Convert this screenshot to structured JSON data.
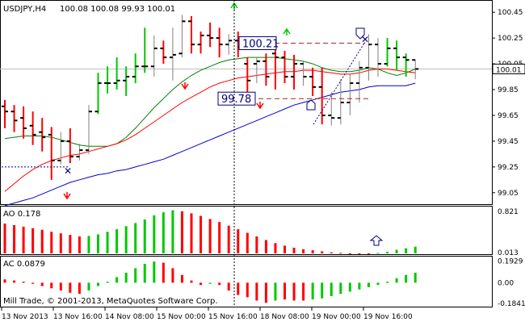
{
  "header": {
    "symbol": "USDJPY,H4",
    "ohlc": "100.08 100.08 99.93 100.01"
  },
  "chart_data": [
    {
      "type": "candlestick",
      "title": "USDJPY,H4",
      "y_ticks": [
        "100.45",
        "100.25",
        "100.05",
        "99.85",
        "99.65",
        "99.45",
        "99.25",
        "99.05"
      ],
      "y_tick_values": [
        100.45,
        100.25,
        100.05,
        99.85,
        99.65,
        99.45,
        99.25,
        99.05
      ],
      "ylim": [
        98.98,
        100.52
      ],
      "current_price": "100.01",
      "current_price_value": 100.01,
      "bars": [
        {
          "o": 99.72,
          "h": 99.77,
          "l": 99.55,
          "c": 99.68,
          "col": "red"
        },
        {
          "o": 99.68,
          "h": 99.73,
          "l": 99.52,
          "c": 99.61,
          "col": "red"
        },
        {
          "o": 99.63,
          "h": 99.72,
          "l": 99.47,
          "c": 99.55,
          "col": "red"
        },
        {
          "o": 99.57,
          "h": 99.68,
          "l": 99.42,
          "c": 99.5,
          "col": "red"
        },
        {
          "o": 99.52,
          "h": 99.63,
          "l": 99.37,
          "c": 99.48,
          "col": "red"
        },
        {
          "o": 99.5,
          "h": 99.56,
          "l": 99.15,
          "c": 99.3,
          "col": "red"
        },
        {
          "o": 99.3,
          "h": 99.52,
          "l": 99.27,
          "c": 99.45,
          "col": "gray"
        },
        {
          "o": 99.45,
          "h": 99.55,
          "l": 99.28,
          "c": 99.33,
          "col": "red"
        },
        {
          "o": 99.33,
          "h": 99.43,
          "l": 99.3,
          "c": 99.38,
          "col": "gray"
        },
        {
          "o": 99.38,
          "h": 99.73,
          "l": 99.35,
          "c": 99.68,
          "col": "gray"
        },
        {
          "o": 99.68,
          "h": 99.98,
          "l": 99.66,
          "c": 99.9,
          "col": "green"
        },
        {
          "o": 99.9,
          "h": 100.03,
          "l": 99.82,
          "c": 99.9,
          "col": "green"
        },
        {
          "o": 99.9,
          "h": 100.1,
          "l": 99.85,
          "c": 99.92,
          "col": "green"
        },
        {
          "o": 99.92,
          "h": 100.03,
          "l": 99.8,
          "c": 99.95,
          "col": "green"
        },
        {
          "o": 99.95,
          "h": 100.13,
          "l": 99.9,
          "c": 100.03,
          "col": "green"
        },
        {
          "o": 100.03,
          "h": 100.33,
          "l": 99.98,
          "c": 100.03,
          "col": "green"
        },
        {
          "o": 100.03,
          "h": 100.27,
          "l": 99.95,
          "c": 100.17,
          "col": "gray"
        },
        {
          "o": 100.17,
          "h": 100.23,
          "l": 100.05,
          "c": 100.1,
          "col": "red"
        },
        {
          "o": 100.1,
          "h": 100.33,
          "l": 99.92,
          "c": 100.12,
          "col": "gray"
        },
        {
          "o": 100.13,
          "h": 100.43,
          "l": 100.1,
          "c": 100.38,
          "col": "gray"
        },
        {
          "o": 100.38,
          "h": 100.42,
          "l": 100.13,
          "c": 100.2,
          "col": "red"
        },
        {
          "o": 100.2,
          "h": 100.3,
          "l": 100.13,
          "c": 100.27,
          "col": "red"
        },
        {
          "o": 100.27,
          "h": 100.37,
          "l": 100.18,
          "c": 100.25,
          "col": "red"
        },
        {
          "o": 100.25,
          "h": 100.33,
          "l": 100.1,
          "c": 100.2,
          "col": "red"
        },
        {
          "o": 100.2,
          "h": 100.28,
          "l": 100.12,
          "c": 100.23,
          "col": "gray"
        },
        {
          "o": 100.23,
          "h": 100.3,
          "l": 100.1,
          "c": 100.18,
          "col": "red"
        },
        {
          "o": 100.05,
          "h": 100.1,
          "l": 99.83,
          "c": 99.92,
          "col": "red"
        },
        {
          "o": 100.05,
          "h": 100.1,
          "l": 99.9,
          "c": 100.07,
          "col": "gray"
        },
        {
          "o": 100.07,
          "h": 100.13,
          "l": 99.88,
          "c": 99.95,
          "col": "red"
        },
        {
          "o": 100.13,
          "h": 100.17,
          "l": 99.85,
          "c": 100.1,
          "col": "red"
        },
        {
          "o": 100.1,
          "h": 100.15,
          "l": 99.9,
          "c": 99.95,
          "col": "red"
        },
        {
          "o": 99.95,
          "h": 100.12,
          "l": 99.85,
          "c": 100.05,
          "col": "red"
        },
        {
          "o": 100.05,
          "h": 100.07,
          "l": 99.88,
          "c": 99.95,
          "col": "gray"
        },
        {
          "o": 99.95,
          "h": 100.02,
          "l": 99.8,
          "c": 99.87,
          "col": "red"
        },
        {
          "o": 99.87,
          "h": 100.02,
          "l": 99.58,
          "c": 99.65,
          "col": "red"
        },
        {
          "o": 99.65,
          "h": 99.83,
          "l": 99.57,
          "c": 99.63,
          "col": "gray"
        },
        {
          "o": 99.63,
          "h": 99.93,
          "l": 99.58,
          "c": 99.75,
          "col": "gray"
        },
        {
          "o": 99.75,
          "h": 99.97,
          "l": 99.65,
          "c": 99.9,
          "col": "gray"
        },
        {
          "o": 99.9,
          "h": 100.07,
          "l": 99.75,
          "c": 100.02,
          "col": "gray"
        },
        {
          "o": 100.02,
          "h": 100.28,
          "l": 99.92,
          "c": 100.2,
          "col": "gray"
        },
        {
          "o": 100.2,
          "h": 100.25,
          "l": 99.95,
          "c": 100.05,
          "col": "gray"
        },
        {
          "o": 100.05,
          "h": 100.25,
          "l": 100.03,
          "c": 100.17,
          "col": "green"
        },
        {
          "o": 100.17,
          "h": 100.23,
          "l": 100.0,
          "c": 100.1,
          "col": "green"
        },
        {
          "o": 100.1,
          "h": 100.13,
          "l": 99.95,
          "c": 100.08,
          "col": "green"
        },
        {
          "o": 100.08,
          "h": 100.08,
          "l": 99.93,
          "c": 100.01,
          "col": "gray"
        }
      ],
      "series": [
        {
          "color": "#008000",
          "values": [
            99.47,
            99.48,
            99.49,
            99.49,
            99.49,
            99.48,
            99.46,
            99.44,
            99.42,
            99.41,
            99.41,
            99.41,
            99.43,
            99.48,
            99.55,
            99.63,
            99.71,
            99.78,
            99.85,
            99.91,
            99.96,
            100.0,
            100.03,
            100.06,
            100.08,
            100.09,
            100.1,
            100.1,
            100.1,
            100.1,
            100.09,
            100.08,
            100.07,
            100.05,
            100.02,
            100.0,
            99.99,
            99.99,
            100.0,
            100.02,
            100.01,
            99.98,
            99.96,
            99.98,
            100.01
          ]
        },
        {
          "color": "#ff0000",
          "values": [
            99.06,
            99.12,
            99.18,
            99.23,
            99.27,
            99.3,
            99.32,
            99.34,
            99.35,
            99.37,
            99.39,
            99.41,
            99.43,
            99.46,
            99.5,
            99.55,
            99.6,
            99.65,
            99.7,
            99.75,
            99.79,
            99.83,
            99.87,
            99.9,
            99.92,
            99.94,
            99.95,
            99.96,
            99.97,
            99.98,
            99.99,
            99.99,
            100.0,
            100.0,
            99.99,
            99.98,
            99.97,
            99.97,
            99.98,
            100.0,
            100.01,
            100.01,
            100.0,
            99.99,
            99.98
          ]
        },
        {
          "color": "#0000cd",
          "values": [
            98.95,
            98.97,
            98.99,
            99.01,
            99.04,
            99.07,
            99.1,
            99.13,
            99.15,
            99.17,
            99.19,
            99.2,
            99.22,
            99.23,
            99.25,
            99.27,
            99.29,
            99.31,
            99.34,
            99.37,
            99.4,
            99.43,
            99.46,
            99.49,
            99.52,
            99.55,
            99.58,
            99.61,
            99.64,
            99.67,
            99.7,
            99.73,
            99.75,
            99.77,
            99.79,
            99.81,
            99.83,
            99.84,
            99.85,
            99.87,
            99.88,
            99.88,
            99.88,
            99.88,
            99.9
          ]
        }
      ],
      "annotations": [
        {
          "label": "100.21",
          "value": 100.21
        },
        {
          "label": "99.78",
          "value": 99.78
        }
      ]
    },
    {
      "type": "bar",
      "title": "AO 0.178",
      "y_ticks": [
        "0.821",
        "0.013"
      ],
      "y_tick_values": [
        0.821,
        0.013
      ],
      "values": [
        0.58,
        0.55,
        0.52,
        0.49,
        0.46,
        0.42,
        0.39,
        0.36,
        0.33,
        0.34,
        0.37,
        0.42,
        0.47,
        0.53,
        0.59,
        0.66,
        0.74,
        0.8,
        0.84,
        0.82,
        0.78,
        0.73,
        0.67,
        0.61,
        0.54,
        0.47,
        0.4,
        0.33,
        0.26,
        0.2,
        0.15,
        0.11,
        0.08,
        0.06,
        0.04,
        0.02,
        0.01,
        0.0,
        0.0,
        0.0,
        0.01,
        0.03,
        0.07,
        0.1,
        0.13
      ],
      "colors": [
        "red",
        "red",
        "red",
        "red",
        "red",
        "red",
        "red",
        "red",
        "red",
        "green",
        "green",
        "green",
        "green",
        "green",
        "green",
        "green",
        "green",
        "green",
        "green",
        "red",
        "red",
        "red",
        "red",
        "red",
        "red",
        "red",
        "red",
        "red",
        "red",
        "red",
        "red",
        "red",
        "red",
        "red",
        "red",
        "red",
        "red",
        "red",
        "red",
        "red",
        "green",
        "green",
        "green",
        "green",
        "green"
      ]
    },
    {
      "type": "bar",
      "title": "AC 0.0879",
      "y_ticks": [
        "0.1929",
        "0.00",
        "-0.1841"
      ],
      "y_tick_values": [
        0.1929,
        0.0,
        -0.1841
      ],
      "values": [
        0.03,
        0.02,
        0.01,
        -0.01,
        -0.03,
        -0.05,
        -0.07,
        -0.09,
        -0.1,
        -0.07,
        -0.03,
        0.01,
        0.05,
        0.09,
        0.13,
        0.17,
        0.19,
        0.18,
        0.13,
        0.07,
        0.02,
        -0.02,
        -0.01,
        -0.02,
        -0.07,
        -0.11,
        -0.13,
        -0.16,
        -0.18,
        -0.16,
        -0.15,
        -0.16,
        -0.16,
        -0.15,
        -0.14,
        -0.12,
        -0.1,
        -0.08,
        -0.06,
        -0.04,
        -0.02,
        0.01,
        0.04,
        0.07,
        0.09
      ],
      "colors": [
        "red",
        "red",
        "red",
        "red",
        "red",
        "red",
        "red",
        "red",
        "red",
        "green",
        "green",
        "green",
        "green",
        "green",
        "green",
        "green",
        "green",
        "red",
        "red",
        "red",
        "red",
        "red",
        "green",
        "red",
        "red",
        "red",
        "red",
        "red",
        "red",
        "green",
        "red",
        "red",
        "red",
        "green",
        "green",
        "green",
        "green",
        "green",
        "green",
        "green",
        "green",
        "green",
        "green",
        "green",
        "green"
      ]
    }
  ],
  "x_axis": {
    "labels": [
      "13 Nov 2013",
      "13 Nov 16:00",
      "14 Nov 08:00",
      "15 Nov 00:00",
      "15 Nov 16:00",
      "18 Nov 08:00",
      "19 Nov 00:00",
      "19 Nov 16:00"
    ]
  },
  "footer": {
    "copyright": "Mill Trade, © 2001-2013, MetaQuotes Software Corp."
  }
}
